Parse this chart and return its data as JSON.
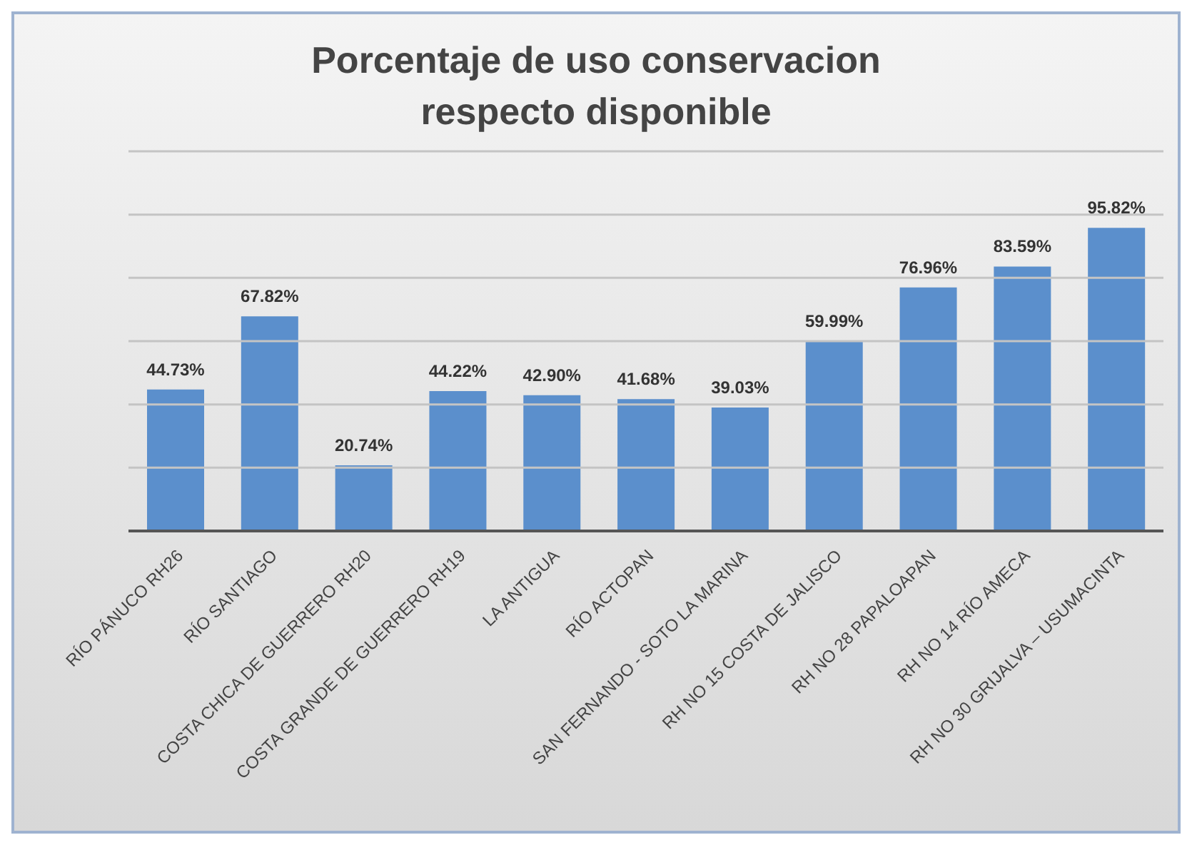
{
  "chart_data": {
    "type": "bar",
    "title": "Porcentaje de uso conservacion respecto disponible",
    "categories": [
      "RÍO PÁNUCO RH26",
      "RÍO SANTIAGO",
      "COSTA CHICA DE GUERRERO RH20",
      "COSTA GRANDE DE GUERRERO RH19",
      "LA ANTIGUA",
      "RÍO ACTOPAN",
      "SAN FERNANDO - SOTO LA MARINA",
      "RH NO 15 COSTA DE JALISCO",
      "RH NO 28 PAPALOAPAN",
      "RH NO 14 RÍO AMECA",
      "RH NO 30 GRIJALVA – USUMACINTA"
    ],
    "values": [
      44.73,
      67.82,
      20.74,
      44.22,
      42.9,
      41.68,
      39.03,
      59.99,
      76.96,
      83.59,
      95.82
    ],
    "value_labels": [
      "44.73%",
      "67.82%",
      "20.74%",
      "44.22%",
      "42.90%",
      "41.68%",
      "39.03%",
      "59.99%",
      "76.96%",
      "83.59%",
      "95.82%"
    ],
    "color": "#5b8fcc",
    "ylim": [
      0,
      120
    ],
    "yticks": [
      {
        "value": 0,
        "label": null
      },
      {
        "value": 20,
        "label": null
      },
      {
        "value": 40,
        "label": null
      },
      {
        "value": 60,
        "label": null
      },
      {
        "value": 80,
        "label": null
      },
      {
        "value": 100,
        "label": null
      },
      {
        "value": 120,
        "label": null
      }
    ],
    "grid": "y",
    "tick_labels": "x",
    "legend": false
  }
}
